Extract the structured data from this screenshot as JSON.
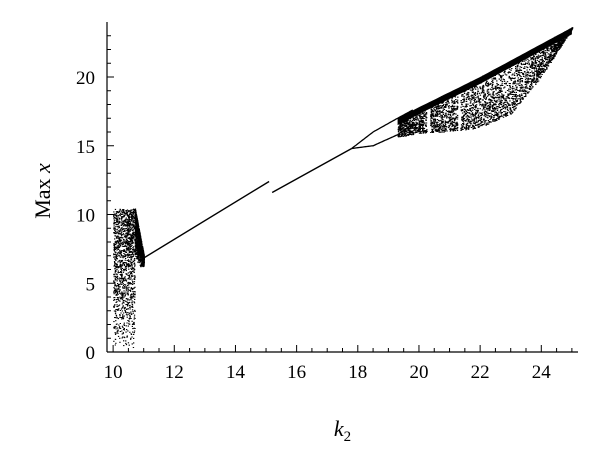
{
  "chart_data": {
    "type": "scatter",
    "title": "",
    "xlabel": {
      "main": "k",
      "sub": "2"
    },
    "ylabel": {
      "main": "Max ",
      "var": "x"
    },
    "xlim": [
      9.8,
      25.2
    ],
    "ylim": [
      0,
      24
    ],
    "xticks": [
      10,
      12,
      14,
      16,
      18,
      20,
      22,
      24
    ],
    "yticks": [
      0,
      5,
      10,
      15,
      20
    ],
    "xtick_labels": [
      "10",
      "12",
      "14",
      "16",
      "18",
      "20",
      "22",
      "24"
    ],
    "ytick_labels": [
      "0",
      "5",
      "10",
      "15",
      "20"
    ],
    "grid": false,
    "color": "#000000",
    "series": [
      {
        "kind": "chaotic-band",
        "x_range": [
          10.0,
          10.7
        ],
        "y_range": [
          0.3,
          10.4
        ]
      },
      {
        "kind": "chaotic-band",
        "x_range": [
          10.7,
          11.0
        ],
        "y_range": [
          6.8,
          10.5
        ]
      },
      {
        "kind": "periodic-line",
        "points": [
          [
            10.9,
            6.7
          ],
          [
            15.1,
            12.4
          ]
        ]
      },
      {
        "kind": "periodic-line",
        "points": [
          [
            15.2,
            11.6
          ],
          [
            17.8,
            14.8
          ]
        ]
      },
      {
        "kind": "period-doubling-bubble",
        "x_range": [
          17.8,
          19.8
        ],
        "y_lower": [
          [
            17.8,
            14.8
          ],
          [
            18.5,
            15.0
          ],
          [
            19.3,
            15.8
          ],
          [
            19.8,
            16.6
          ]
        ],
        "y_upper": [
          [
            17.8,
            14.8
          ],
          [
            18.5,
            16.0
          ],
          [
            19.3,
            17.0
          ],
          [
            19.8,
            17.6
          ]
        ]
      },
      {
        "kind": "chaotic-band",
        "x_range": [
          19.3,
          25.0
        ],
        "lower": [
          [
            19.3,
            15.6
          ],
          [
            20.0,
            15.9
          ],
          [
            21.0,
            16.0
          ],
          [
            22.0,
            16.3
          ],
          [
            23.0,
            17.3
          ],
          [
            24.0,
            20.0
          ],
          [
            25.0,
            23.5
          ]
        ],
        "upper": [
          [
            19.3,
            17.0
          ],
          [
            20.0,
            17.8
          ],
          [
            21.0,
            18.9
          ],
          [
            22.0,
            20.0
          ],
          [
            23.0,
            21.2
          ],
          [
            24.0,
            22.4
          ],
          [
            25.0,
            23.6
          ]
        ]
      }
    ]
  }
}
